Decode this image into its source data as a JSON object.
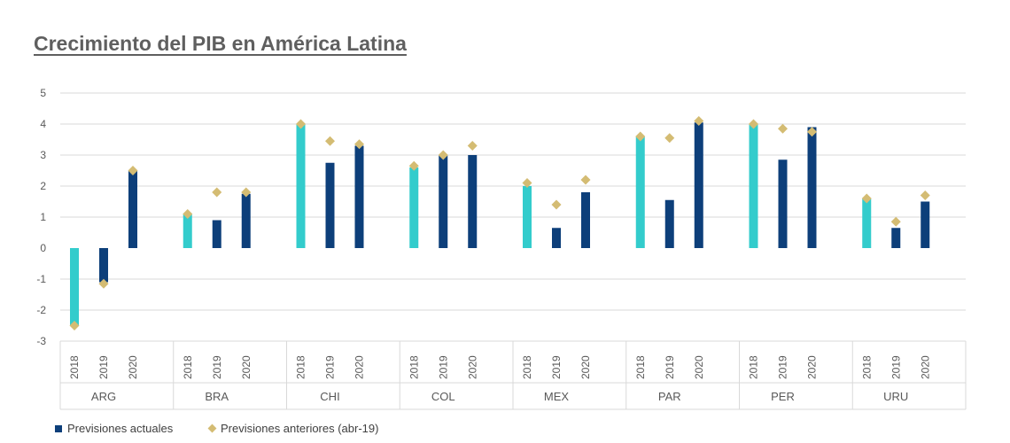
{
  "colors": {
    "first_year_bar": "#33CCCC",
    "actual_bar": "#0D3F7A",
    "previous_marker": "#D4BC73",
    "grid": "#D9D9D9",
    "text": "#595959"
  },
  "chart_data": {
    "type": "bar",
    "title": "Crecimiento del PIB en América Latina",
    "ylim": [
      -3,
      5
    ],
    "yticks": [
      "-3",
      "-2",
      "-1",
      "0",
      "1",
      "2",
      "3",
      "4",
      "5"
    ],
    "grid": true,
    "legend_position": "bottom-left",
    "groups": [
      {
        "label": "ARG",
        "years": [
          "2018",
          "2019",
          "2020"
        ],
        "actual": [
          -2.5,
          -1.1,
          2.5
        ],
        "previous": [
          -2.5,
          -1.15,
          2.5
        ]
      },
      {
        "label": "BRA",
        "years": [
          "2018",
          "2019",
          "2020"
        ],
        "actual": [
          1.1,
          0.9,
          1.75
        ],
        "previous": [
          1.1,
          1.8,
          1.8
        ]
      },
      {
        "label": "CHI",
        "years": [
          "2018",
          "2019",
          "2020"
        ],
        "actual": [
          4.0,
          2.75,
          3.3
        ],
        "previous": [
          4.0,
          3.45,
          3.35
        ]
      },
      {
        "label": "COL",
        "years": [
          "2018",
          "2019",
          "2020"
        ],
        "actual": [
          2.6,
          3.0,
          3.0
        ],
        "previous": [
          2.65,
          3.0,
          3.3
        ]
      },
      {
        "label": "MEX",
        "years": [
          "2018",
          "2019",
          "2020"
        ],
        "actual": [
          2.0,
          0.65,
          1.8
        ],
        "previous": [
          2.1,
          1.4,
          2.2
        ]
      },
      {
        "label": "PAR",
        "years": [
          "2018",
          "2019",
          "2020"
        ],
        "actual": [
          3.6,
          1.55,
          4.05
        ],
        "previous": [
          3.6,
          3.55,
          4.1
        ]
      },
      {
        "label": "PER",
        "years": [
          "2018",
          "2019",
          "2020"
        ],
        "actual": [
          4.0,
          2.85,
          3.9
        ],
        "previous": [
          4.0,
          3.85,
          3.75
        ]
      },
      {
        "label": "URU",
        "years": [
          "2018",
          "2019",
          "2020"
        ],
        "actual": [
          1.6,
          0.65,
          1.5
        ],
        "previous": [
          1.6,
          0.85,
          1.7
        ]
      }
    ],
    "series": [
      {
        "name": "Previsiones actuales"
      },
      {
        "name": "Previsiones anteriores (abr-19)"
      }
    ]
  }
}
